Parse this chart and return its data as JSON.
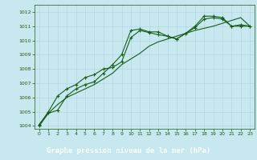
{
  "title": "Graphe pression niveau de la mer (hPa)",
  "background_color": "#c6e8ee",
  "plot_bg_color": "#c6e8ee",
  "grid_color": "#b0d8e0",
  "line_color": "#1a5c1a",
  "label_bg_color": "#2a6e2a",
  "label_text_color": "#ffffff",
  "x_ticks": [
    0,
    1,
    2,
    3,
    4,
    5,
    6,
    7,
    8,
    9,
    10,
    11,
    12,
    13,
    14,
    15,
    16,
    17,
    18,
    19,
    20,
    21,
    22,
    23
  ],
  "ylim": [
    1003.8,
    1012.5
  ],
  "yticks": [
    1004,
    1005,
    1006,
    1007,
    1008,
    1009,
    1010,
    1011,
    1012
  ],
  "series1": [
    1004.0,
    1004.9,
    1005.1,
    1006.1,
    1006.6,
    1006.9,
    1007.1,
    1007.7,
    1008.3,
    1009.0,
    1010.7,
    1010.8,
    1010.6,
    1010.6,
    1010.3,
    1010.1,
    1010.5,
    1011.0,
    1011.7,
    1011.7,
    1011.6,
    1011.0,
    1011.1,
    1011.0
  ],
  "series2": [
    1004.1,
    1005.0,
    1006.1,
    1006.6,
    1006.9,
    1007.4,
    1007.6,
    1008.0,
    1008.1,
    1008.5,
    1010.2,
    1010.7,
    1010.55,
    1010.4,
    1010.3,
    1010.1,
    1010.5,
    1010.9,
    1011.5,
    1011.6,
    1011.5,
    1011.0,
    1011.0,
    1011.0
  ],
  "series3": [
    1004.1,
    1004.9,
    1005.5,
    1006.0,
    1006.3,
    1006.6,
    1006.9,
    1007.3,
    1007.7,
    1008.3,
    1008.7,
    1009.1,
    1009.6,
    1009.9,
    1010.1,
    1010.3,
    1010.5,
    1010.7,
    1010.85,
    1011.0,
    1011.2,
    1011.4,
    1011.6,
    1011.0
  ]
}
